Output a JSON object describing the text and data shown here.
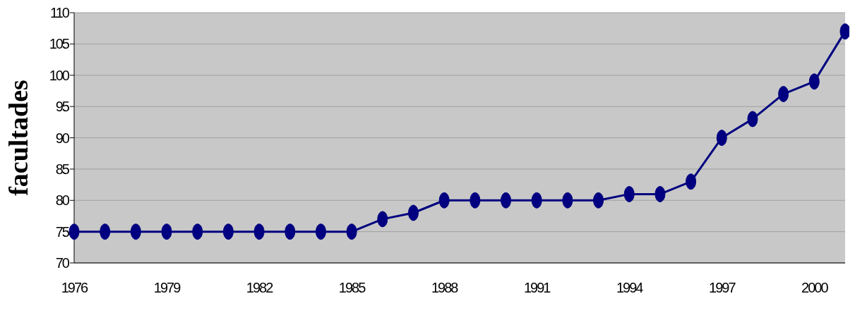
{
  "chart_data": {
    "type": "line",
    "ylabel": "facultades",
    "categories": [
      "1976",
      null,
      null,
      "1979",
      null,
      null,
      "1982",
      null,
      null,
      "1985",
      null,
      null,
      "1988",
      null,
      null,
      "1991",
      null,
      null,
      "1994",
      null,
      null,
      "1997",
      null,
      null,
      "2000",
      null
    ],
    "series": [
      {
        "color": "#000080",
        "values": [
          75,
          75,
          75,
          75,
          75,
          75,
          75,
          75,
          75,
          75,
          77,
          78,
          80,
          80,
          80,
          80,
          80,
          80,
          81,
          81,
          83,
          90,
          93,
          97,
          99,
          107
        ]
      }
    ],
    "ylim": [
      70,
      110
    ],
    "yticks": [
      70,
      75,
      80,
      85,
      90,
      95,
      100,
      105,
      110
    ],
    "grid": "y",
    "marker": "circle",
    "line_style": "solid"
  }
}
